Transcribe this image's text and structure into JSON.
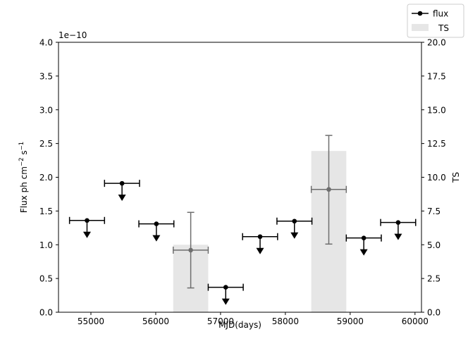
{
  "chart_data": {
    "type": "scatter",
    "xlabel": "MJD(days)",
    "ylabel_left": "Flux ph cm$^{-2}$ s$^{-1}$",
    "ylabel_right": "TS",
    "offset_label": "1e−10",
    "xlim": [
      54500,
      60100
    ],
    "ylim_left": [
      0.0,
      4.0
    ],
    "ylim_right": [
      0.0,
      20.0
    ],
    "xticks": [
      55000,
      56000,
      57000,
      58000,
      59000,
      60000
    ],
    "yticks_left": [
      "0.0",
      "0.5",
      "1.0",
      "1.5",
      "2.0",
      "2.5",
      "3.0",
      "3.5",
      "4.0"
    ],
    "yticks_right": [
      "0.0",
      "2.5",
      "5.0",
      "7.5",
      "10.0",
      "12.5",
      "15.0",
      "17.5",
      "20.0"
    ],
    "legend": {
      "position": "top-right",
      "entries": [
        "flux",
        "TS"
      ]
    },
    "series": [
      {
        "name": "flux",
        "upper_limits": true,
        "points": [
          {
            "x": 54940,
            "xerr": 270,
            "y": 1.36
          },
          {
            "x": 55480,
            "xerr": 270,
            "y": 1.91
          },
          {
            "x": 56010,
            "xerr": 270,
            "y": 1.31
          },
          {
            "x": 57080,
            "xerr": 270,
            "y": 0.37
          },
          {
            "x": 57610,
            "xerr": 270,
            "y": 1.12
          },
          {
            "x": 58140,
            "xerr": 270,
            "y": 1.35
          },
          {
            "x": 59210,
            "xerr": 270,
            "y": 1.1
          },
          {
            "x": 59740,
            "xerr": 270,
            "y": 1.33
          }
        ]
      },
      {
        "name": "flux",
        "upper_limits": false,
        "color": "#6e6e6e",
        "points": [
          {
            "x": 56540,
            "xerr": 270,
            "y": 0.92,
            "ylo": 0.36,
            "yhi": 1.48
          },
          {
            "x": 58670,
            "xerr": 270,
            "y": 1.82,
            "ylo": 1.01,
            "yhi": 2.62
          }
        ]
      },
      {
        "name": "TS",
        "type": "bar",
        "axis": "right",
        "color": "#e6e6e6",
        "bars": [
          {
            "x0": 56270,
            "x1": 56810,
            "value": 5.0
          },
          {
            "x0": 58400,
            "x1": 58940,
            "value": 11.95
          }
        ]
      }
    ]
  }
}
